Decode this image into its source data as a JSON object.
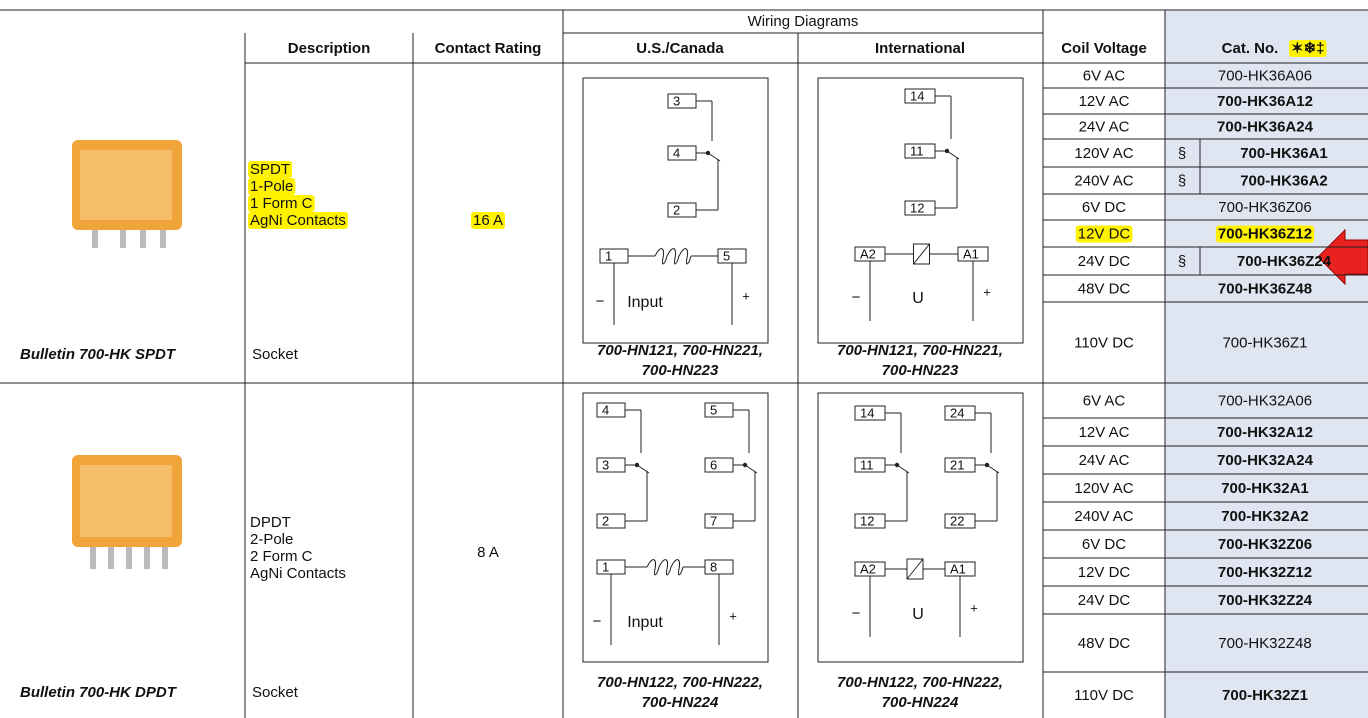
{
  "header": {
    "group": "Wiring Diagrams",
    "columns": [
      "Description",
      "Contact Rating",
      "U.S./Canada",
      "International",
      "Coil Voltage",
      "Cat. No."
    ],
    "cat_symbols": "✶❄‡"
  },
  "sections": [
    {
      "bulletin": "Bulletin 700-HK SPDT",
      "description": [
        "SPDT",
        "1-Pole",
        "1 Form C",
        "AgNi Contacts"
      ],
      "highlight": true,
      "rating": "16 A",
      "socket": "Socket",
      "sockets_us": [
        "700-HN121, 700-HN221,",
        "700-HN223"
      ],
      "sockets_intl": [
        "700-HN121, 700-HN221,",
        "700-HN223"
      ],
      "diagram_us": {
        "poles": [
          [
            "3",
            "4",
            "2"
          ]
        ],
        "coil": [
          "1",
          "5"
        ],
        "polarity": [
          "−",
          "+"
        ],
        "coil_label": "Input"
      },
      "diagram_intl": {
        "poles": [
          [
            "14",
            "11",
            "12"
          ]
        ],
        "coil": [
          "A2",
          "A1"
        ],
        "polarity": [
          "−",
          "+"
        ],
        "coil_label": "U"
      },
      "rows": [
        {
          "voltage": "6V AC",
          "cat_no": "700-HK36A06",
          "bold": false
        },
        {
          "voltage": "12V AC",
          "cat_no": "700-HK36A12",
          "bold": true
        },
        {
          "voltage": "24V AC",
          "cat_no": "700-HK36A24",
          "bold": true
        },
        {
          "voltage": "120V AC",
          "cat_no": "700-HK36A1",
          "bold": true,
          "mark": "§"
        },
        {
          "voltage": "240V AC",
          "cat_no": "700-HK36A2",
          "bold": true,
          "mark": "§"
        },
        {
          "voltage": "6V DC",
          "cat_no": "700-HK36Z06",
          "bold": false
        },
        {
          "voltage": "12V DC",
          "cat_no": "700-HK36Z12",
          "bold": true,
          "highlight": true
        },
        {
          "voltage": "24V DC",
          "cat_no": "700-HK36Z24",
          "bold": true,
          "mark": "§"
        },
        {
          "voltage": "48V DC",
          "cat_no": "700-HK36Z48",
          "bold": true
        },
        {
          "voltage": "110V DC",
          "cat_no": "700-HK36Z1",
          "bold": false
        }
      ]
    },
    {
      "bulletin": "Bulletin 700-HK DPDT",
      "description": [
        "DPDT",
        "2-Pole",
        "2 Form C",
        "AgNi Contacts"
      ],
      "highlight": false,
      "rating": "8 A",
      "socket": "Socket",
      "sockets_us": [
        "700-HN122, 700-HN222,",
        "700-HN224"
      ],
      "sockets_intl": [
        "700-HN122, 700-HN222,",
        "700-HN224"
      ],
      "diagram_us": {
        "poles": [
          [
            "4",
            "3",
            "2"
          ],
          [
            "5",
            "6",
            "7"
          ]
        ],
        "coil": [
          "1",
          "8"
        ],
        "polarity": [
          "−",
          "+"
        ],
        "coil_label": "Input"
      },
      "diagram_intl": {
        "poles": [
          [
            "14",
            "11",
            "12"
          ],
          [
            "24",
            "21",
            "22"
          ]
        ],
        "coil": [
          "A2",
          "A1"
        ],
        "polarity": [
          "−",
          "+"
        ],
        "coil_label": "U"
      },
      "rows": [
        {
          "voltage": "6V AC",
          "cat_no": "700-HK32A06",
          "bold": false
        },
        {
          "voltage": "12V AC",
          "cat_no": "700-HK32A12",
          "bold": true
        },
        {
          "voltage": "24V AC",
          "cat_no": "700-HK32A24",
          "bold": true
        },
        {
          "voltage": "120V AC",
          "cat_no": "700-HK32A1",
          "bold": true
        },
        {
          "voltage": "240V AC",
          "cat_no": "700-HK32A2",
          "bold": true
        },
        {
          "voltage": "6V DC",
          "cat_no": "700-HK32Z06",
          "bold": true
        },
        {
          "voltage": "12V DC",
          "cat_no": "700-HK32Z12",
          "bold": true
        },
        {
          "voltage": "24V DC",
          "cat_no": "700-HK32Z24",
          "bold": true
        },
        {
          "voltage": "48V DC",
          "cat_no": "700-HK32Z48",
          "bold": false
        },
        {
          "voltage": "110V DC",
          "cat_no": "700-HK32Z1",
          "bold": true
        }
      ]
    }
  ]
}
